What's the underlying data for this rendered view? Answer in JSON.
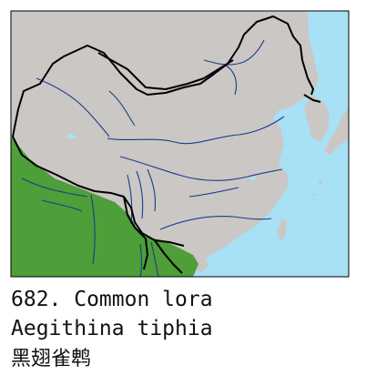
{
  "caption": {
    "number_line": "682. Common lora",
    "scientific_name": "Aegithina tiphia",
    "chinese_name": "黑翅雀鹎"
  },
  "map": {
    "colors": {
      "sea": "#a8e0f5",
      "land": "#cbc7c4",
      "range": "#4e9e3a",
      "rivers": "#1a3d8c",
      "borders": "#000000"
    }
  }
}
